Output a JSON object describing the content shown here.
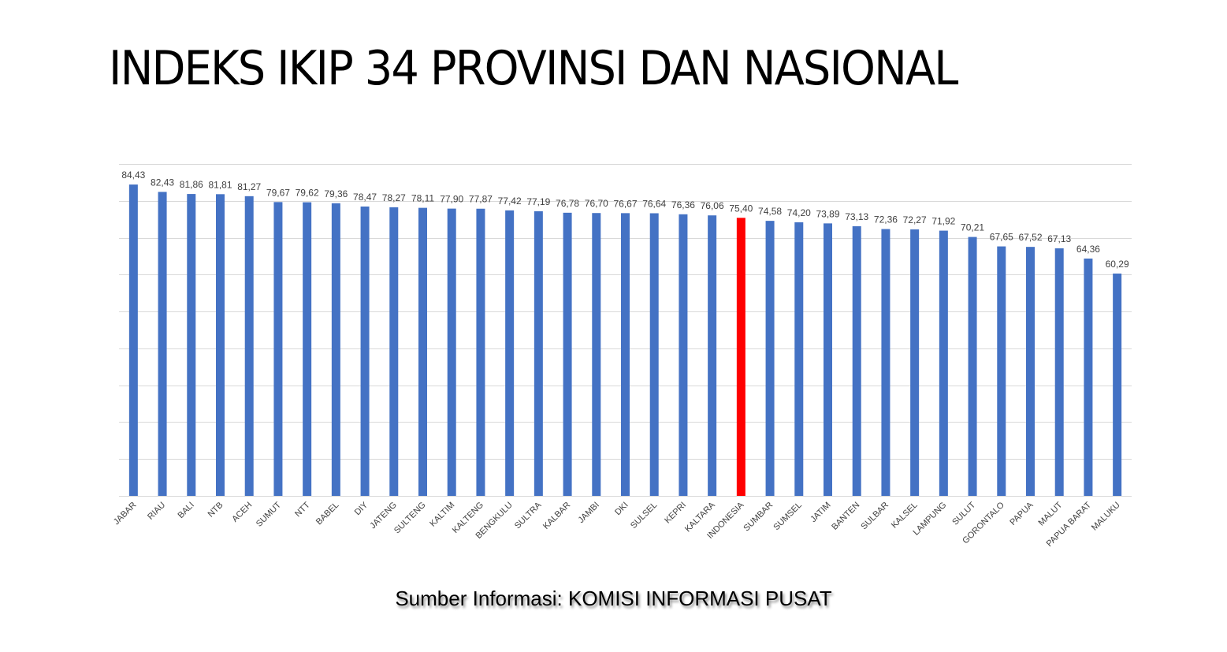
{
  "page": {
    "title": "INDEKS IKIP 34 PROVINSI DAN NASIONAL",
    "source": "Sumber Informasi: KOMISI INFORMASI PUSAT"
  },
  "colors": {
    "bar": "#4472C4",
    "highlight": "#FF0000",
    "gridline": "#D9D9D9",
    "label_text": "#404040"
  },
  "chart_data": {
    "type": "bar",
    "categories": [
      "JABAR",
      "RIAU",
      "BALI",
      "NTB",
      "ACEH",
      "SUMUT",
      "NTT",
      "BABEL",
      "DIY",
      "JATENG",
      "SULTENG",
      "KALTIM",
      "KALTENG",
      "BENGKULU",
      "SULTRA",
      "KALBAR",
      "JAMBI",
      "DKI",
      "SULSEL",
      "KEPRI",
      "KALTARA",
      "INDONESIA",
      "SUMBAR",
      "SUMSEL",
      "JATIM",
      "BANTEN",
      "SULBAR",
      "KALSEL",
      "LAMPUNG",
      "SULUT",
      "GORONTALO",
      "PAPUA",
      "MALUT",
      "PAPUA BARAT",
      "MALUKU"
    ],
    "values": [
      84.43,
      82.43,
      81.86,
      81.81,
      81.27,
      79.67,
      79.62,
      79.36,
      78.47,
      78.27,
      78.11,
      77.9,
      77.87,
      77.42,
      77.19,
      76.78,
      76.7,
      76.67,
      76.64,
      76.36,
      76.06,
      75.4,
      74.58,
      74.2,
      73.89,
      73.13,
      72.36,
      72.27,
      71.92,
      70.21,
      67.65,
      67.52,
      67.13,
      64.36,
      60.29
    ],
    "value_labels": [
      "84,43",
      "82,43",
      "81,86",
      "81,81",
      "81,27",
      "79,67",
      "79,62",
      "79,36",
      "78,47",
      "78,27",
      "78,11",
      "77,90",
      "77,87",
      "77,42",
      "77,19",
      "76,78",
      "76,70",
      "76,67",
      "76,64",
      "76,36",
      "76,06",
      "75,40",
      "74,58",
      "74,20",
      "73,89",
      "73,13",
      "72,36",
      "72,27",
      "71,92",
      "70,21",
      "67,65",
      "67,52",
      "67,13",
      "64,36",
      "60,29"
    ],
    "highlight_category": "INDONESIA",
    "ylim": [
      0,
      90
    ],
    "grid": true,
    "legend": "none",
    "title": "",
    "xlabel": "",
    "ylabel": ""
  }
}
